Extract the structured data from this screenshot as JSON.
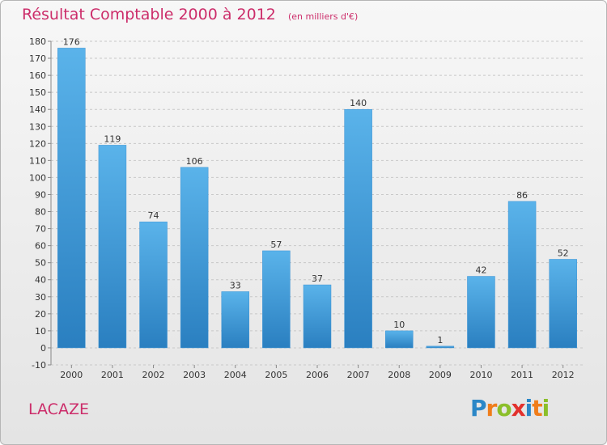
{
  "title": "Résultat Comptable 2000 à 2012",
  "unit": "(en milliers d'€)",
  "commune": "LACAZE",
  "brand": {
    "letters": [
      "P",
      "r",
      "o",
      "x",
      "i",
      "t",
      "i"
    ],
    "colors": [
      "#2b87c7",
      "#f07d1a",
      "#8bbf2a",
      "#e2312d",
      "#2b87c7",
      "#f07d1a",
      "#8bbf2a"
    ]
  },
  "colors": {
    "title": "#cc2d6a",
    "bar_light": "#5ab3ea",
    "bar_dark": "#2a7fc0",
    "grid": "#c8c8c8"
  },
  "chart_data": {
    "type": "bar",
    "categories": [
      "2000",
      "2001",
      "2002",
      "2003",
      "2004",
      "2005",
      "2006",
      "2007",
      "2008",
      "2009",
      "2010",
      "2011",
      "2012"
    ],
    "values": [
      176,
      119,
      74,
      106,
      33,
      57,
      37,
      140,
      10,
      1,
      42,
      86,
      52
    ],
    "data_labels": [
      "176",
      "119",
      "74",
      "106",
      "33",
      "57",
      "37",
      "140",
      "10",
      "1",
      "42",
      "86",
      "52"
    ],
    "yticks": [
      -10,
      0,
      10,
      20,
      30,
      40,
      50,
      60,
      70,
      80,
      90,
      100,
      110,
      120,
      130,
      140,
      150,
      160,
      170,
      180
    ],
    "ylim": [
      -10,
      180
    ],
    "grid": true,
    "legend": "none"
  }
}
